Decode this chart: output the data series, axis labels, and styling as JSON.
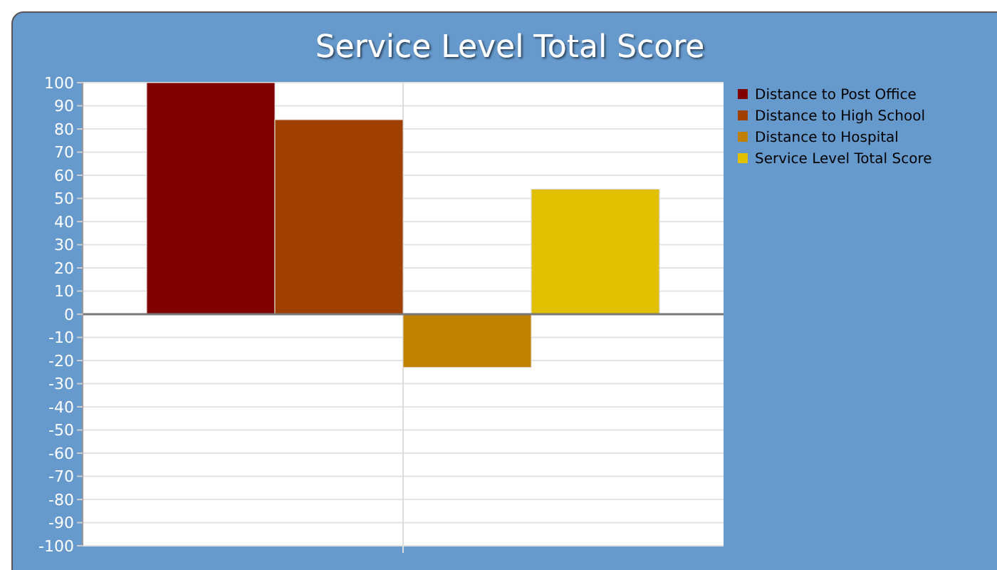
{
  "chart_data": {
    "type": "bar",
    "title": "Service Level Total Score",
    "categories": [
      null
    ],
    "series": [
      {
        "name": "Distance to Post Office",
        "color": "#800000",
        "values": [
          100
        ]
      },
      {
        "name": "Distance to High School",
        "color": "#a04000",
        "values": [
          84
        ]
      },
      {
        "name": "Distance to Hospital",
        "color": "#c08000",
        "values": [
          -23
        ]
      },
      {
        "name": "Service Level Total Score",
        "color": "#e0c000",
        "values": [
          54
        ]
      }
    ],
    "ylim": [
      -100,
      100
    ],
    "yticks": [
      -100,
      -90,
      -80,
      -70,
      -60,
      -50,
      -40,
      -30,
      -20,
      -10,
      0,
      10,
      20,
      30,
      40,
      50,
      60,
      70,
      80,
      90,
      100
    ],
    "grid": true,
    "legend": "top right"
  }
}
